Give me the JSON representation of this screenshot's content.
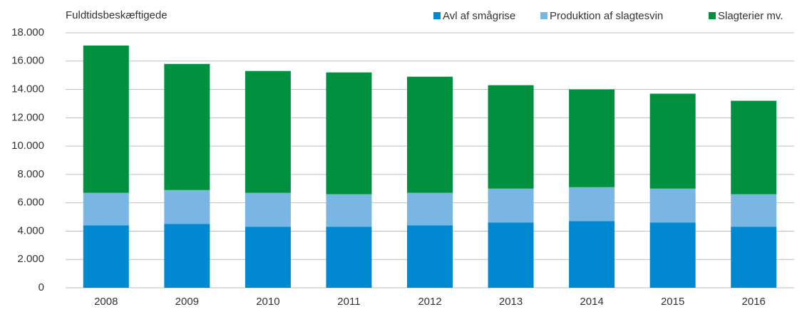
{
  "chart_data": {
    "type": "stacked_bar",
    "y_label": "Fuldtidsbeskæftigede",
    "categories": [
      "2008",
      "2009",
      "2010",
      "2011",
      "2012",
      "2013",
      "2014",
      "2015",
      "2016"
    ],
    "series": [
      {
        "name": "Avl af smågrise",
        "color": "#0088d1",
        "values": [
          4400,
          4500,
          4300,
          4300,
          4400,
          4600,
          4700,
          4600,
          4300
        ]
      },
      {
        "name": "Produktion af slagtesvin",
        "color": "#7ab6e3",
        "values": [
          2300,
          2400,
          2400,
          2300,
          2300,
          2400,
          2400,
          2400,
          2300
        ]
      },
      {
        "name": "Slagterier mv.",
        "color": "#009040",
        "values": [
          10400,
          8900,
          8600,
          8600,
          8200,
          7300,
          6900,
          6700,
          6600
        ]
      }
    ],
    "ylim": [
      0,
      18000
    ],
    "yticks": [
      0,
      {
        "value": 2000,
        "label": "2.000"
      },
      {
        "value": 4000,
        "label": "4.000"
      },
      {
        "value": 6000,
        "label": "6.000"
      },
      {
        "value": 8000,
        "label": "8.000"
      },
      {
        "value": 10000,
        "label": "10.000"
      },
      {
        "value": 12000,
        "label": "12.000"
      },
      {
        "value": 14000,
        "label": "14.000"
      },
      {
        "value": 16000,
        "label": "16.000"
      },
      {
        "value": 18000,
        "label": "18.000"
      }
    ],
    "grid": true,
    "legend": "top-right"
  }
}
